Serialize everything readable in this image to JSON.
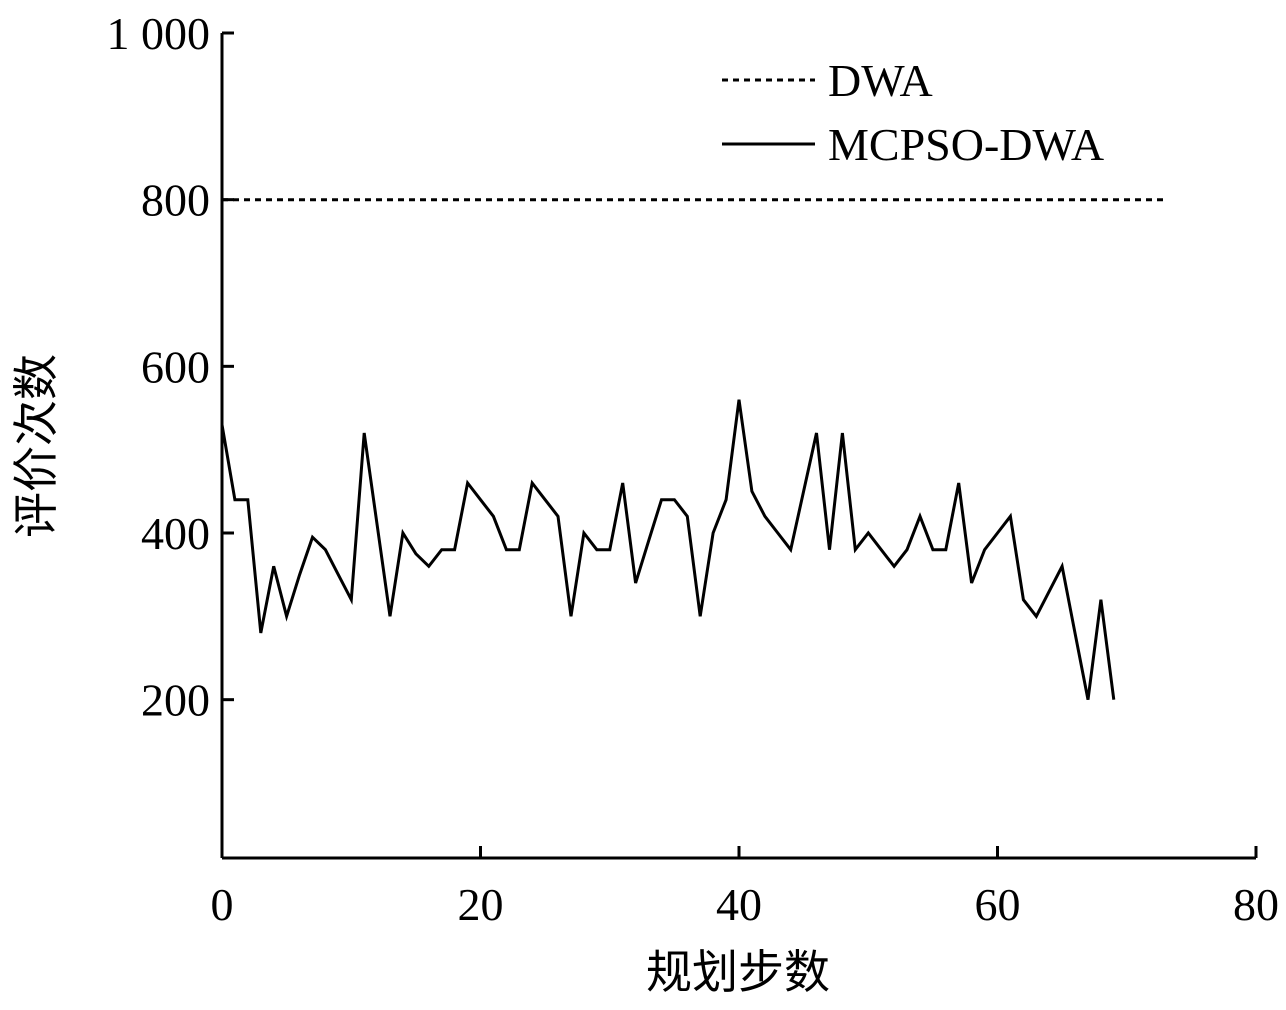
{
  "chart_data": {
    "type": "line",
    "xlabel": "规划步数",
    "ylabel": "评价次数",
    "xlim": [
      0,
      80
    ],
    "ylim": [
      10,
      1000
    ],
    "xticks": [
      0,
      20,
      40,
      60,
      80
    ],
    "xtick_labels": [
      "0",
      "20",
      "40",
      "60",
      "80"
    ],
    "yticks": [
      200,
      400,
      600,
      800,
      1000
    ],
    "ytick_labels": [
      "200",
      "400",
      "600",
      "800",
      "1 000"
    ],
    "grid": false,
    "legend_position": "top-right",
    "series": [
      {
        "name": "DWA",
        "line_style": "dotted",
        "color": "#000000",
        "x": [
          0,
          73
        ],
        "y": [
          800,
          800
        ]
      },
      {
        "name": "MCPSO-DWA",
        "line_style": "solid",
        "color": "#000000",
        "x": [
          0,
          1,
          2,
          3,
          4,
          5,
          6,
          7,
          8,
          9,
          10,
          11,
          12,
          13,
          14,
          15,
          16,
          17,
          18,
          19,
          20,
          21,
          22,
          23,
          24,
          25,
          26,
          27,
          28,
          29,
          30,
          31,
          32,
          33,
          34,
          35,
          36,
          37,
          38,
          39,
          40,
          41,
          42,
          43,
          44,
          45,
          46,
          47,
          48,
          49,
          50,
          51,
          52,
          53,
          54,
          55,
          56,
          57,
          58,
          59,
          60,
          61,
          62,
          63,
          64,
          65,
          66,
          67,
          68,
          69
        ],
        "y": [
          530,
          440,
          440,
          280,
          360,
          300,
          350,
          395,
          380,
          350,
          320,
          520,
          410,
          300,
          400,
          375,
          360,
          380,
          380,
          460,
          440,
          420,
          380,
          380,
          460,
          440,
          420,
          300,
          400,
          380,
          380,
          460,
          340,
          390,
          440,
          440,
          420,
          300,
          400,
          440,
          560,
          450,
          420,
          400,
          380,
          450,
          520,
          380,
          520,
          380,
          400,
          380,
          360,
          380,
          420,
          380,
          380,
          460,
          340,
          380,
          400,
          420,
          320,
          300,
          330,
          360,
          280,
          200,
          320,
          200
        ]
      }
    ]
  }
}
